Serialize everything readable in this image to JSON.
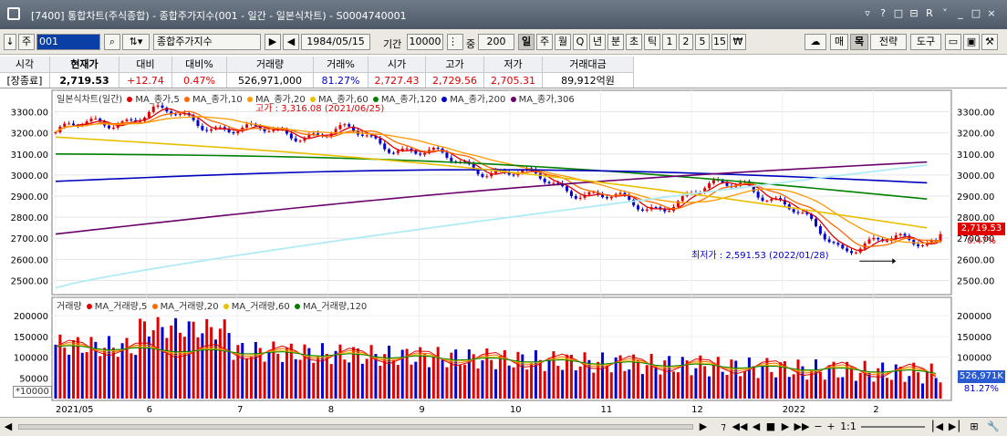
{
  "titlebar": {
    "title": "[7400] 통합차트(주식종합) - 종합주가지수(001 - 일간 - 일본식차트) - S0004740001",
    "tools": [
      "▿",
      "?",
      "□",
      "⊟",
      "R",
      "˅",
      "_",
      "□",
      "×"
    ]
  },
  "toolbar": {
    "arrows": "↓",
    "market": "주",
    "code": "001",
    "name": "종합주가지수",
    "date": "1984/05/15",
    "period_label": "기간",
    "period_value": "10000",
    "count_label": "중",
    "count_value": "200",
    "intervals": [
      "일",
      "주",
      "월",
      "Q",
      "년",
      "분",
      "초",
      "틱",
      "1",
      "2",
      "5",
      "15",
      "₩"
    ],
    "right_buttons": [
      "매",
      "목",
      "전략",
      "도구"
    ]
  },
  "quote": {
    "headers": [
      "시각",
      "현재가",
      "대비",
      "대비%",
      "거래량",
      "거래%",
      "시가",
      "고가",
      "저가",
      "거래대금"
    ],
    "values": [
      "[장종료]",
      "2,719.53",
      "+12.74",
      "0.47%",
      "526,971,000",
      "81.27%",
      "2,727.43",
      "2,729.56",
      "2,705.31",
      "89,912억원"
    ]
  },
  "price_legend": {
    "title": "일본식차트(일간)",
    "items": [
      {
        "label": "MA_종가,5",
        "color": "#e00000"
      },
      {
        "label": "MA_종가,10",
        "color": "#ff6a00"
      },
      {
        "label": "MA_종가,20",
        "color": "#ff9900"
      },
      {
        "label": "MA_종가,60",
        "color": "#e8c000"
      },
      {
        "label": "MA_종가,120",
        "color": "#008000"
      },
      {
        "label": "MA_종가,200",
        "color": "#0000c0"
      },
      {
        "label": "MA_종가,306",
        "color": "#6a006a"
      }
    ]
  },
  "volume_legend": {
    "title": "거래량",
    "items": [
      {
        "label": "MA_거래량,5",
        "color": "#e00000"
      },
      {
        "label": "MA_거래량,20",
        "color": "#ff6a00"
      },
      {
        "label": "MA_거래량,60",
        "color": "#e8c000"
      },
      {
        "label": "MA_거래량,120",
        "color": "#008000"
      }
    ]
  },
  "annotations": {
    "high": "고가 : 3,316.08 (2021/06/25)",
    "low": "최저가 : 2,591.53 (2022/01/28)"
  },
  "price_tags": {
    "close": "2,719.53",
    "change": "0.47%",
    "volume": "526,971K",
    "volume_pct": "81.27%"
  },
  "volume_unit": "*10000",
  "x_labels": [
    "2021/05",
    "6",
    "7",
    "8",
    "9",
    "10",
    "11",
    "12",
    "2022",
    "2"
  ],
  "statusbar": {
    "buttons": [
      "⁊",
      "◀◀",
      "◀",
      "■",
      "▶",
      "▶▶",
      "−",
      "+",
      "1:1",
      "⎮◀",
      "▶⎮",
      "⊞",
      "🔧"
    ]
  },
  "chart_data": [
    {
      "type": "candlestick",
      "title": "일본식차트(일간)",
      "x": [
        "2021/05",
        "6",
        "7",
        "8",
        "9",
        "10",
        "11",
        "12",
        "2022",
        "2"
      ],
      "ylim": [
        2450,
        3350
      ],
      "yticks": [
        2500,
        2600,
        2700,
        2800,
        2900,
        3000,
        3100,
        3200,
        3300
      ],
      "monthly_close": [
        3203,
        3297,
        3202,
        3199,
        3069,
        2970,
        2839,
        2977,
        2663,
        2699
      ],
      "last": {
        "open": 2727.43,
        "high": 2729.56,
        "low": 2705.31,
        "close": 2719.53
      },
      "high_mark": {
        "value": 3316.08,
        "date": "2021/06/25"
      },
      "low_mark": {
        "value": 2591.53,
        "date": "2022/01/28"
      },
      "moving_averages": [
        {
          "name": "MA_종가,120",
          "start": 3100,
          "end": 2880
        },
        {
          "name": "MA_종가,200",
          "start": 2970,
          "end": 2960
        },
        {
          "name": "MA_종가,306",
          "start": 2720,
          "end": 3065
        },
        {
          "name": "MA_종가,60",
          "start": 3180,
          "end": 2740
        }
      ]
    },
    {
      "type": "bar",
      "title": "거래량",
      "unit": "*10000",
      "ylim": [
        0,
        220000
      ],
      "yticks": [
        50000,
        100000,
        150000,
        200000
      ],
      "last_volume": 526971
    }
  ]
}
